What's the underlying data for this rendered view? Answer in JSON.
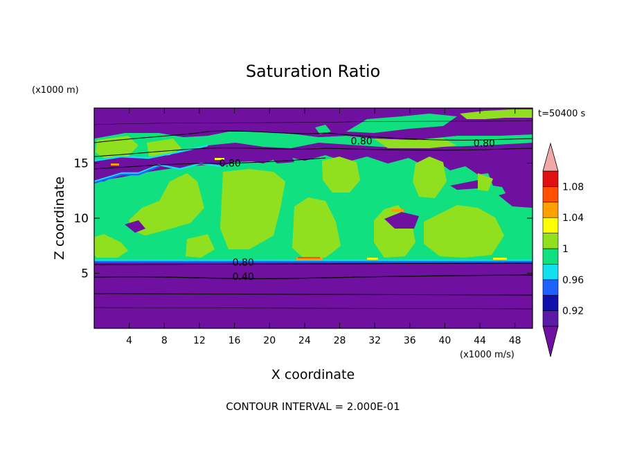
{
  "chart_data": {
    "type": "heatmap",
    "title": "Saturation Ratio",
    "xlabel": "X coordinate",
    "ylabel": "Z coordinate",
    "x_unit_label": "(x1000 m/s)",
    "y_unit_label": "(x1000 m)",
    "time_label": "t=50400 s",
    "footer": "CONTOUR INTERVAL = 2.000E-01",
    "xlim": [
      0,
      50
    ],
    "ylim": [
      0,
      20
    ],
    "x_ticks": [
      4,
      8,
      12,
      16,
      20,
      24,
      28,
      32,
      36,
      40,
      44,
      48
    ],
    "y_ticks": [
      5,
      10,
      15
    ],
    "colorbar": {
      "min": 0.9,
      "max": 1.1,
      "extend": "both",
      "tick_labels": [
        "0.92",
        "0.96",
        "1",
        "1.04",
        "1.08"
      ],
      "tick_values": [
        0.92,
        0.96,
        1.0,
        1.04,
        1.08
      ],
      "levels": [
        {
          "from": 0.9,
          "to": 0.92,
          "color": "#5b1aa8"
        },
        {
          "from": 0.92,
          "to": 0.94,
          "color": "#1010aa"
        },
        {
          "from": 0.94,
          "to": 0.96,
          "color": "#2060ff"
        },
        {
          "from": 0.96,
          "to": 0.98,
          "color": "#10e0f0"
        },
        {
          "from": 0.98,
          "to": 1.0,
          "color": "#10e080"
        },
        {
          "from": 1.0,
          "to": 1.02,
          "color": "#90e020"
        },
        {
          "from": 1.02,
          "to": 1.04,
          "color": "#ffff00"
        },
        {
          "from": 1.04,
          "to": 1.06,
          "color": "#ffa000"
        },
        {
          "from": 1.06,
          "to": 1.08,
          "color": "#ff5000"
        },
        {
          "from": 1.08,
          "to": 1.1,
          "color": "#e01010"
        }
      ],
      "under_color": "#7010a0",
      "over_color": "#f0a8a8"
    },
    "contour_labels": [
      {
        "text": "0.80",
        "x": 30.5,
        "y": 16.7
      },
      {
        "text": "0.80",
        "x": 44.5,
        "y": 16.5
      },
      {
        "text": "0.80",
        "x": 15.5,
        "y": 14.7
      },
      {
        "text": "0.80",
        "x": 17.0,
        "y": 5.7
      },
      {
        "text": "0.40",
        "x": 17.0,
        "y": 4.4
      }
    ],
    "regions": {
      "subsaturated_low": {
        "z_range": [
          0,
          6
        ],
        "value": "<0.90"
      },
      "cloud_layer_mid": {
        "z_range": [
          6,
          14.5
        ],
        "value": "0.98-1.02"
      },
      "dry_band": {
        "z_range": [
          14.5,
          16.5
        ],
        "value": "<0.90"
      },
      "upper_cloud": {
        "z_range": [
          16.5,
          18.5
        ],
        "value": "0.98-1.02"
      },
      "dry_top": {
        "z_range": [
          18.5,
          20
        ],
        "value": "<0.90"
      }
    }
  }
}
